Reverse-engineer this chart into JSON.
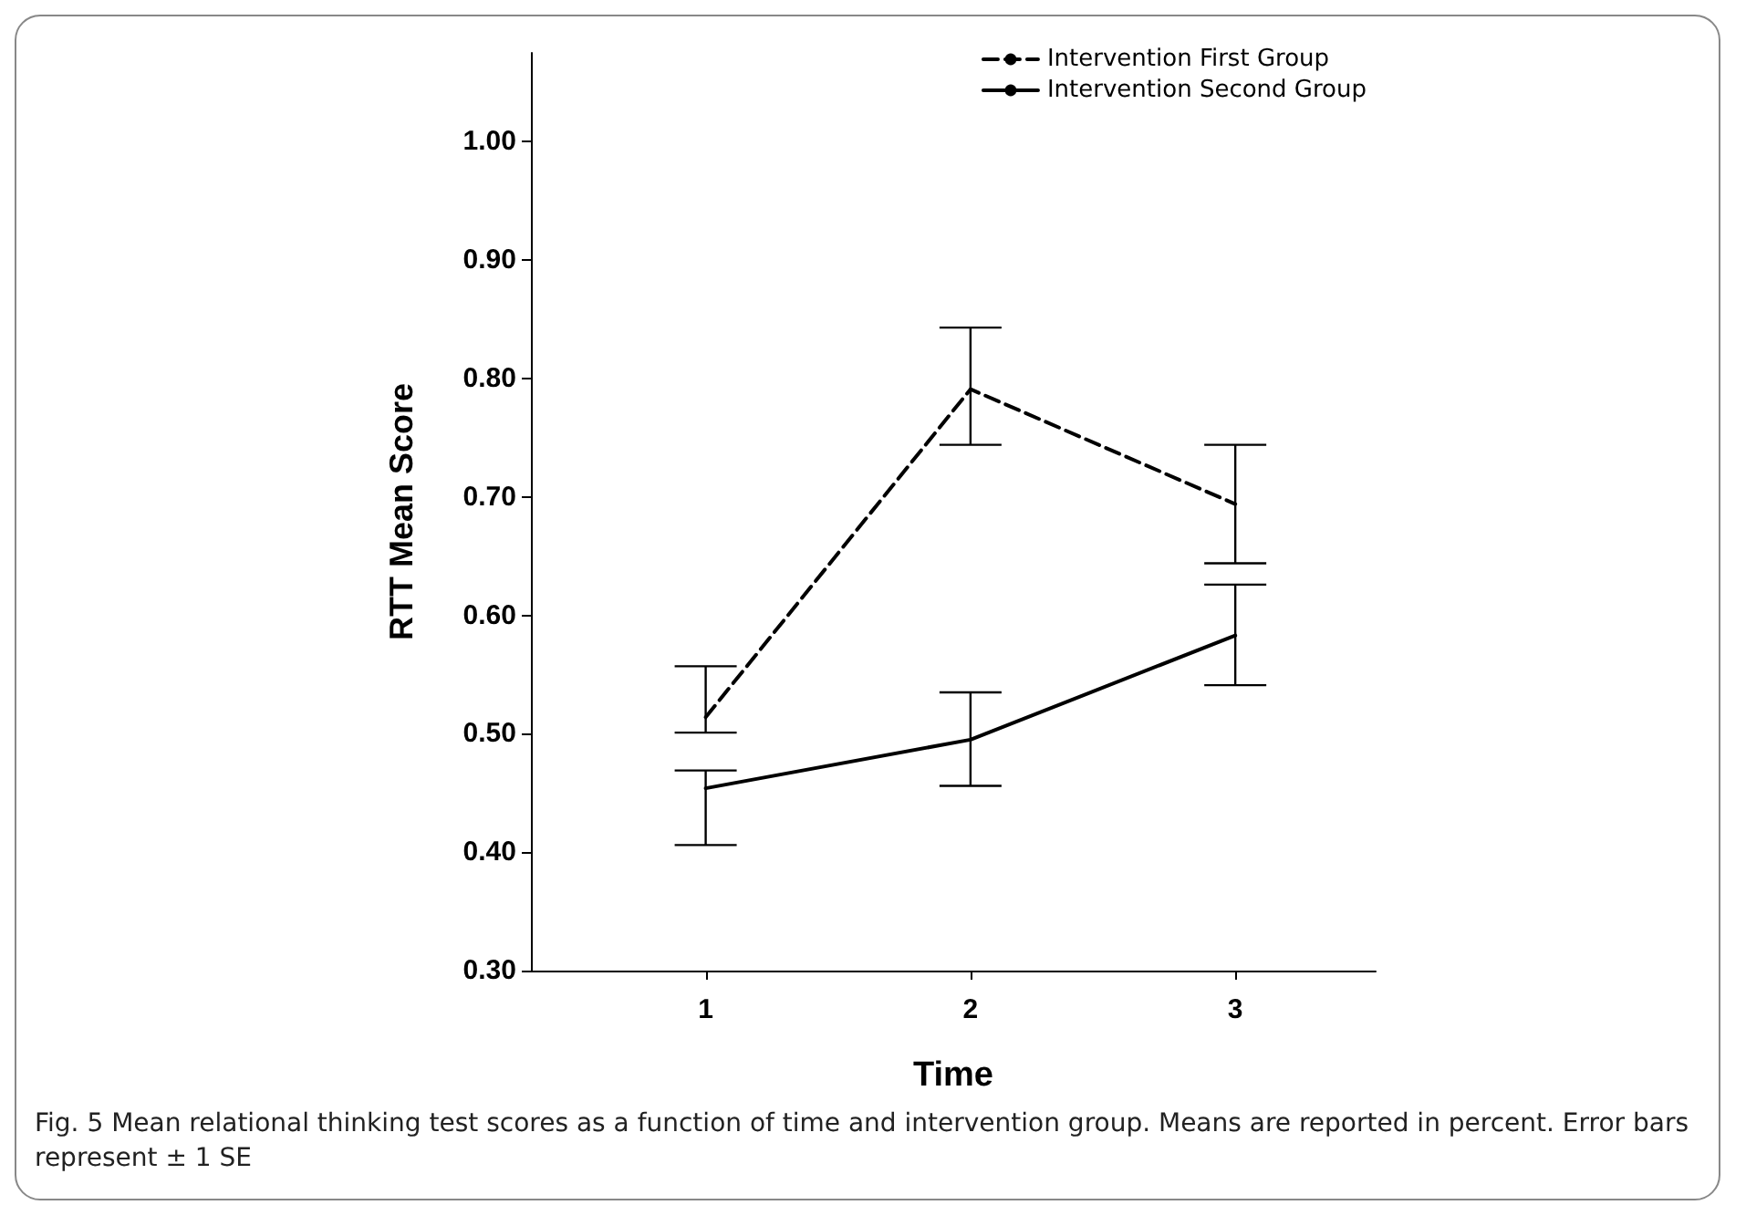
{
  "chart_data": {
    "type": "line",
    "xlabel": "Time",
    "ylabel": "RTT Mean Score",
    "x": [
      1,
      2,
      3
    ],
    "xlim": [
      0.34,
      3.53
    ],
    "xticks": [
      1,
      2,
      3
    ],
    "ylim": [
      0.3,
      1.075
    ],
    "yticks": [
      {
        "value": 0.3,
        "label": "0.30"
      },
      {
        "value": 0.4,
        "label": "0.40"
      },
      {
        "value": 0.5,
        "label": "0.50"
      },
      {
        "value": 0.6,
        "label": "0.60"
      },
      {
        "value": 0.7,
        "label": "0.70"
      },
      {
        "value": 0.8,
        "label": "0.80"
      },
      {
        "value": 0.9,
        "label": "0.90"
      },
      {
        "value": 1.0,
        "label": "1.00"
      }
    ],
    "series": [
      {
        "name": "Intervention First Group",
        "color": "#000000",
        "line_style": "dashed",
        "values": [
          0.514,
          0.791,
          0.694
        ],
        "errors": [
          [
            0.501,
            0.557
          ],
          [
            0.744,
            0.843
          ],
          [
            0.644,
            0.744
          ]
        ]
      },
      {
        "name": "Intervention Second Group",
        "color": "#000000",
        "line_style": "solid",
        "values": [
          0.454,
          0.495,
          0.583
        ],
        "errors": [
          [
            0.406,
            0.469
          ],
          [
            0.456,
            0.535
          ],
          [
            0.541,
            0.626
          ]
        ]
      }
    ],
    "marker": "none",
    "grid": false,
    "legend": "top right",
    "annotations": [
      "Fig. 5 Mean relational thinking test scores as a function of time and intervention group. Means are reported in percent. Error bars represent ± 1 SE"
    ]
  }
}
